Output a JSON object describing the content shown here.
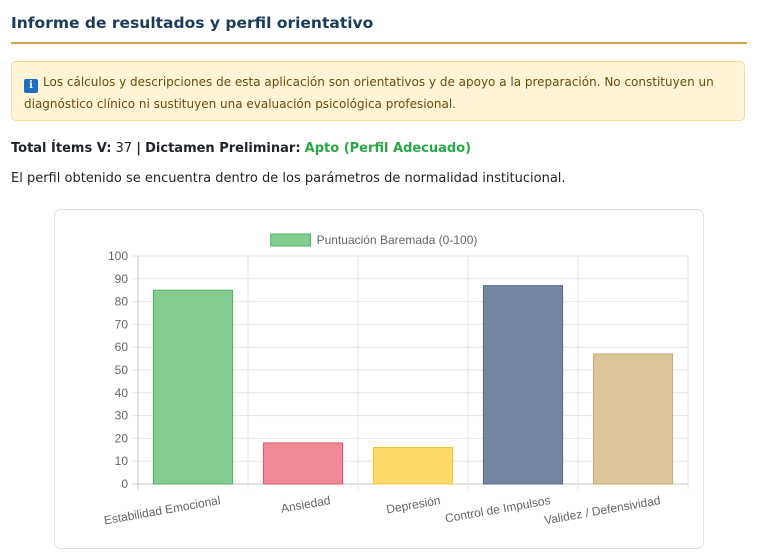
{
  "header": {
    "title": "Informe de resultados y perfil orientativo"
  },
  "notice": {
    "icon": "info-icon",
    "icon_glyph": "i",
    "text": "Los cálculos y descripciones de esta aplicación son orientativos y de apoyo a la preparación. No constituyen un diagnóstico clínico ni sustituyen una evaluación psicológica profesional."
  },
  "summary": {
    "total_label": "Total Ítems V:",
    "total_value": "37",
    "separator": "|",
    "verdict_label": "Dictamen Preliminar:",
    "verdict_value": "Apto (Perfil Adecuado)",
    "verdict_color": "#28a745"
  },
  "description": "El perfil obtenido se encuentra dentro de los parámetros de normalidad institucional.",
  "chart_data": {
    "type": "bar",
    "title": "",
    "xlabel": "",
    "ylabel": "",
    "legend_position": "top",
    "grid": true,
    "ylim": [
      0,
      100
    ],
    "yticks": [
      "0",
      "10",
      "20",
      "30",
      "40",
      "50",
      "60",
      "70",
      "80",
      "90",
      "100"
    ],
    "categories": [
      "Estabilidad Emocional",
      "Ansiedad",
      "Depresión",
      "Control de Impulsos",
      "Validez / Defensividad"
    ],
    "series": [
      {
        "name": "Puntuación Baremada (0-100)",
        "values": [
          85,
          18,
          16,
          87,
          57
        ],
        "colors": [
          "#82cd8f",
          "#ee8a95",
          "#ffd96b",
          "#74869f",
          "#dcc699"
        ],
        "border_colors": [
          "#52b261",
          "#e0576a",
          "#f4c030",
          "#566987",
          "#c9ac72"
        ],
        "legend_color": "#82cd8f",
        "legend_border": "#52b261"
      }
    ]
  }
}
